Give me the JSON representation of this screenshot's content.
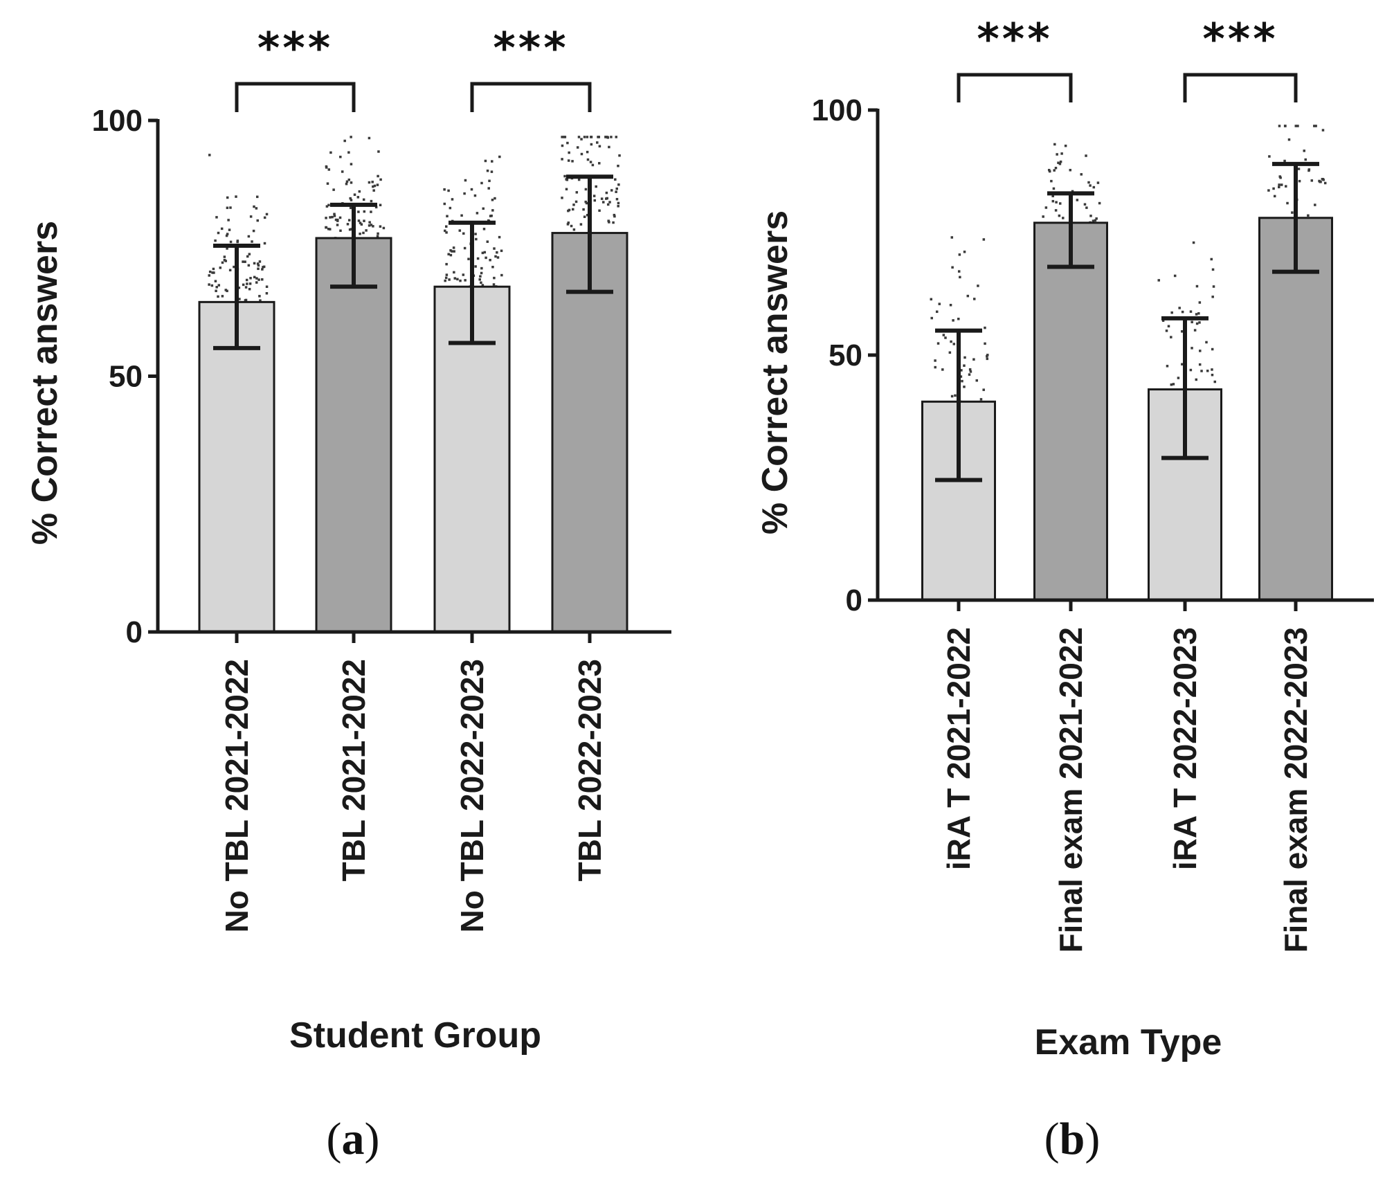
{
  "colors": {
    "light_bar": "#d6d6d6",
    "dark_bar": "#a3a3a3",
    "axis": "#1a1a1a",
    "dots": "#3a3a3a"
  },
  "chart_data": [
    {
      "id": "a",
      "type": "bar",
      "panel_label": {
        "open": "(",
        "letter": "a",
        "close": ")"
      },
      "xlabel": "Student Group",
      "ylabel": "% Correct answers",
      "ylim": [
        0,
        100
      ],
      "yticks": [
        "0",
        "50",
        "100"
      ],
      "grid": false,
      "categories": [
        "No TBL 2021-2022",
        "TBL 2021-2022",
        "No TBL 2022-2023",
        "TBL 2022-2023"
      ],
      "values": [
        64.5,
        77,
        67.5,
        78
      ],
      "error_low": [
        55.5,
        67.5,
        56.5,
        66.5
      ],
      "error_high": [
        75.5,
        83.5,
        80,
        89
      ],
      "bar_shades": [
        "light",
        "dark",
        "light",
        "dark"
      ],
      "significance": [
        {
          "from": 0,
          "to": 1,
          "label": "***"
        },
        {
          "from": 2,
          "to": 3,
          "label": "***"
        }
      ]
    },
    {
      "id": "b",
      "type": "bar",
      "panel_label": {
        "open": "(",
        "letter": "b",
        "close": ")"
      },
      "xlabel": "Exam Type",
      "ylabel": "% Correct answers",
      "ylim": [
        0,
        100
      ],
      "yticks": [
        "0",
        "50",
        "100"
      ],
      "grid": false,
      "categories": [
        "iRA T 2021-2022",
        "Final exam 2021-2022",
        "iRA T 2022-2023",
        "Final exam 2022-2023"
      ],
      "values": [
        40.5,
        77,
        43,
        78
      ],
      "error_low": [
        24.5,
        68,
        29,
        67
      ],
      "error_high": [
        55,
        83,
        57.5,
        89
      ],
      "bar_shades": [
        "light",
        "dark",
        "light",
        "dark"
      ],
      "significance": [
        {
          "from": 0,
          "to": 1,
          "label": "***"
        },
        {
          "from": 2,
          "to": 3,
          "label": "***"
        }
      ]
    }
  ]
}
